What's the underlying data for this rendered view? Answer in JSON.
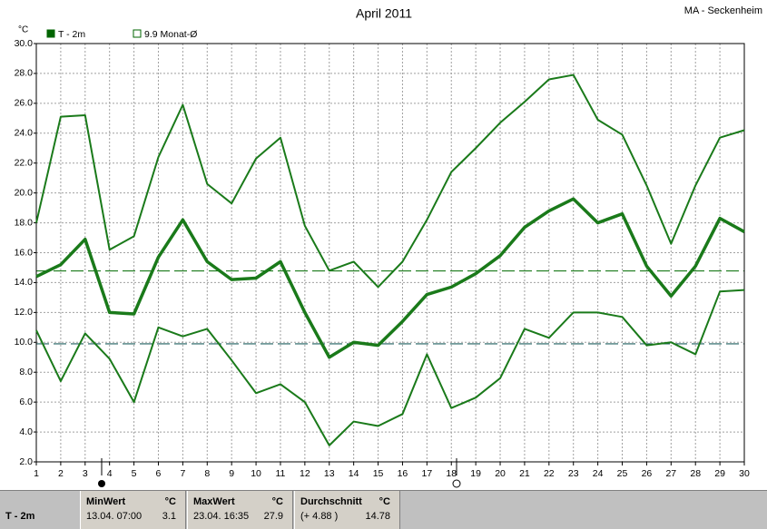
{
  "chart_data": {
    "type": "line",
    "title": "April 2011",
    "station": "MA - Seckenheim",
    "y_unit": "°C",
    "legend": [
      {
        "label": "T - 2m",
        "style": "filled",
        "color": "#006400"
      },
      {
        "label": "9.9 Monat-Ø",
        "style": "hollow",
        "color": "#006400"
      }
    ],
    "x": [
      1,
      2,
      3,
      4,
      5,
      6,
      7,
      8,
      9,
      10,
      11,
      12,
      13,
      14,
      15,
      16,
      17,
      18,
      19,
      20,
      21,
      22,
      23,
      24,
      25,
      26,
      27,
      28,
      29,
      30
    ],
    "xlim": [
      1,
      30
    ],
    "xticks": [
      1,
      2,
      3,
      4,
      5,
      6,
      7,
      8,
      9,
      10,
      11,
      12,
      13,
      14,
      15,
      16,
      17,
      18,
      19,
      20,
      21,
      22,
      23,
      24,
      25,
      26,
      27,
      28,
      29,
      30
    ],
    "ylim": [
      2,
      30
    ],
    "yticks": [
      {
        "value": 2,
        "label": "2.0"
      },
      {
        "value": 4,
        "label": "4.0"
      },
      {
        "value": 6,
        "label": "6.0"
      },
      {
        "value": 8,
        "label": "8.0"
      },
      {
        "value": 10,
        "label": "10.0"
      },
      {
        "value": 12,
        "label": "12.0"
      },
      {
        "value": 14,
        "label": "14.0"
      },
      {
        "value": 16,
        "label": "16.0"
      },
      {
        "value": 18,
        "label": "18.0"
      },
      {
        "value": 20,
        "label": "20.0"
      },
      {
        "value": 22,
        "label": "22.0"
      },
      {
        "value": 24,
        "label": "24.0"
      },
      {
        "value": 26,
        "label": "26.0"
      },
      {
        "value": 28,
        "label": "28.0"
      },
      {
        "value": 30,
        "label": "30.0"
      }
    ],
    "grid": true,
    "series": [
      {
        "color": "#1a7a1a",
        "width": 2,
        "values": [
          18.0,
          25.1,
          25.2,
          16.2,
          17.1,
          22.4,
          25.9,
          20.6,
          19.3,
          22.3,
          23.7,
          17.8,
          14.8,
          15.4,
          13.7,
          15.4,
          18.2,
          21.4,
          23.0,
          24.7,
          26.1,
          27.6,
          27.9,
          24.9,
          23.9,
          20.5,
          16.6,
          20.5,
          23.7,
          24.2
        ]
      },
      {
        "color": "#1a7a1a",
        "width": 3.5,
        "values": [
          14.4,
          15.2,
          16.9,
          12.0,
          11.9,
          15.7,
          18.2,
          15.4,
          14.2,
          14.3,
          15.4,
          12.0,
          9.0,
          10.0,
          9.8,
          11.4,
          13.2,
          13.7,
          14.6,
          15.8,
          17.7,
          18.8,
          19.6,
          18.0,
          18.6,
          15.1,
          13.1,
          15.1,
          18.3,
          17.4
        ]
      },
      {
        "color": "#1a7a1a",
        "width": 2,
        "values": [
          10.8,
          7.4,
          10.6,
          8.9,
          6.0,
          11.0,
          10.4,
          10.9,
          8.8,
          6.6,
          7.2,
          6.0,
          3.1,
          4.7,
          4.4,
          5.2,
          9.2,
          5.6,
          6.3,
          7.6,
          10.9,
          10.3,
          12.0,
          12.0,
          11.7,
          9.8,
          10.0,
          9.2,
          13.4,
          13.5
        ]
      }
    ],
    "reference_lines": [
      {
        "value": 14.78,
        "color": "#1a7a1a"
      },
      {
        "value": 9.9,
        "color": "#1f5f5f"
      }
    ]
  },
  "stats": {
    "row_label": "T - 2m",
    "columns": [
      {
        "header": "MinWert",
        "unit": "°C",
        "time": "13.04.  07:00",
        "value": 3.1
      },
      {
        "header": "MaxWert",
        "unit": "°C",
        "time": "23.04.  16:35",
        "value": 27.9
      },
      {
        "header": "Durchschnitt",
        "unit": "°C",
        "time": "(+ 4.88 )",
        "value": 14.78
      }
    ]
  }
}
